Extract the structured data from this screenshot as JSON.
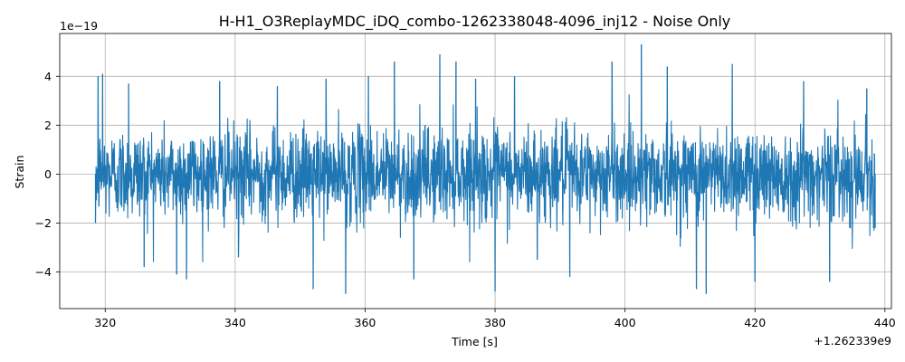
{
  "chart_data": {
    "type": "line",
    "title": "H-H1_O3ReplayMDC_iDQ_combo-1262338048-4096_inj12 - Noise Only",
    "xlabel": "Time [s]",
    "ylabel": "Strain",
    "x_offset_label": "+1.262339e9",
    "y_scale_label": "1e−19",
    "xlim": [
      313,
      441
    ],
    "ylim": [
      -5.5,
      5.75
    ],
    "x_ticks": [
      320,
      340,
      360,
      380,
      400,
      420,
      440
    ],
    "x_tick_labels": [
      "320",
      "340",
      "360",
      "380",
      "400",
      "420",
      "440"
    ],
    "y_ticks": [
      -4,
      -2,
      0,
      2,
      4
    ],
    "y_tick_labels": [
      "−4",
      "−2",
      "0",
      "2",
      "4"
    ],
    "grid": true,
    "legend": "none",
    "series": [
      {
        "color": "#1f77b4",
        "x_start": 318.5,
        "x_end": 438.5,
        "x": [
          318.5,
          318.9,
          319.6,
          323.6,
          326.0,
          331.0,
          332.5,
          337.6,
          340.5,
          346.5,
          352.0,
          354.0,
          357.0,
          360.5,
          364.5,
          367.5,
          371.5,
          374.0,
          377.0,
          380.0,
          383.0,
          386.5,
          391.5,
          398.0,
          402.5,
          406.5,
          411.0,
          412.5,
          416.5,
          420.0,
          427.5,
          431.5,
          437.2,
          438.5
        ],
        "y": [
          -2.0,
          4.0,
          4.1,
          3.7,
          -3.8,
          -4.1,
          -4.3,
          3.8,
          -3.4,
          3.6,
          -4.7,
          3.9,
          -4.9,
          4.0,
          4.6,
          -4.3,
          4.9,
          4.6,
          3.9,
          -4.8,
          4.0,
          -3.5,
          -4.2,
          4.6,
          5.3,
          4.4,
          -4.7,
          -4.9,
          4.5,
          -4.4,
          3.8,
          -4.4,
          3.5,
          -2.2
        ]
      }
    ]
  }
}
